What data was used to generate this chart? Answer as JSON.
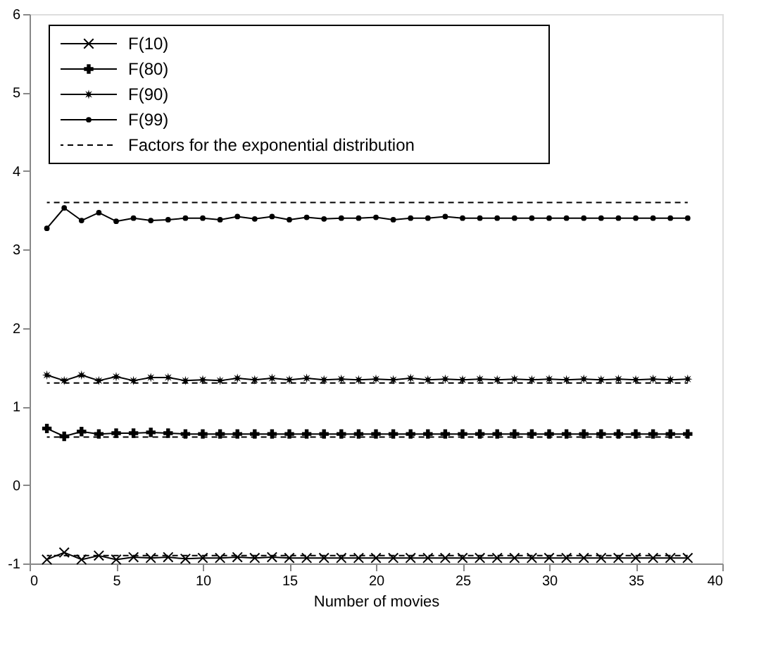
{
  "chart_data": {
    "type": "line",
    "xlabel": "Number of movies",
    "x": [
      1,
      2,
      3,
      4,
      5,
      6,
      7,
      8,
      9,
      10,
      11,
      12,
      13,
      14,
      15,
      16,
      17,
      18,
      19,
      20,
      21,
      22,
      23,
      24,
      25,
      26,
      27,
      28,
      29,
      30,
      31,
      32,
      33,
      34,
      35,
      36,
      37,
      38
    ],
    "series": [
      {
        "name": "F(10)",
        "color": "#000000",
        "marker": "x",
        "line_style": "solid",
        "values": [
          -0.95,
          -0.86,
          -0.95,
          -0.9,
          -0.95,
          -0.92,
          -0.93,
          -0.92,
          -0.94,
          -0.93,
          -0.93,
          -0.92,
          -0.93,
          -0.92,
          -0.93,
          -0.93,
          -0.93,
          -0.93,
          -0.93,
          -0.93,
          -0.93,
          -0.93,
          -0.93,
          -0.93,
          -0.93,
          -0.93,
          -0.93,
          -0.93,
          -0.93,
          -0.93,
          -0.93,
          -0.93,
          -0.93,
          -0.93,
          -0.93,
          -0.93,
          -0.93,
          -0.93
        ]
      },
      {
        "name": "F(80)",
        "color": "#000000",
        "marker": "cross",
        "line_style": "solid",
        "values": [
          0.72,
          0.62,
          0.68,
          0.65,
          0.66,
          0.66,
          0.67,
          0.66,
          0.65,
          0.65,
          0.65,
          0.65,
          0.65,
          0.65,
          0.65,
          0.65,
          0.65,
          0.65,
          0.65,
          0.65,
          0.65,
          0.65,
          0.65,
          0.65,
          0.65,
          0.65,
          0.65,
          0.65,
          0.65,
          0.65,
          0.65,
          0.65,
          0.65,
          0.65,
          0.65,
          0.65,
          0.65,
          0.65
        ]
      },
      {
        "name": "F(90)",
        "color": "#000000",
        "marker": "star",
        "line_style": "solid",
        "values": [
          1.4,
          1.33,
          1.4,
          1.33,
          1.38,
          1.33,
          1.37,
          1.37,
          1.33,
          1.34,
          1.33,
          1.36,
          1.34,
          1.36,
          1.34,
          1.36,
          1.34,
          1.35,
          1.34,
          1.35,
          1.34,
          1.36,
          1.34,
          1.35,
          1.34,
          1.35,
          1.34,
          1.35,
          1.34,
          1.35,
          1.34,
          1.35,
          1.34,
          1.35,
          1.34,
          1.35,
          1.34,
          1.35
        ]
      },
      {
        "name": "F(99)",
        "color": "#000000",
        "marker": "circle",
        "line_style": "solid",
        "values": [
          3.27,
          3.53,
          3.37,
          3.47,
          3.36,
          3.4,
          3.37,
          3.38,
          3.4,
          3.4,
          3.38,
          3.42,
          3.39,
          3.42,
          3.38,
          3.41,
          3.39,
          3.4,
          3.4,
          3.41,
          3.38,
          3.4,
          3.4,
          3.42,
          3.4,
          3.4,
          3.4,
          3.4,
          3.4,
          3.4,
          3.4,
          3.4,
          3.4,
          3.4,
          3.4,
          3.4,
          3.4,
          3.4
        ]
      },
      {
        "name": "Factors for the exponential distribution",
        "color": "#000000",
        "marker": "none",
        "line_style": "dashed",
        "values": [
          3.6,
          3.6,
          3.6,
          3.6,
          3.6,
          3.6,
          3.6,
          3.6,
          3.6,
          3.6,
          3.6,
          3.6,
          3.6,
          3.6,
          3.6,
          3.6,
          3.6,
          3.6,
          3.6,
          3.6,
          3.6,
          3.6,
          3.6,
          3.6,
          3.6,
          3.6,
          3.6,
          3.6,
          3.6,
          3.6,
          3.6,
          3.6,
          3.6,
          3.6,
          3.6,
          3.6,
          3.6,
          3.6
        ]
      },
      {
        "color": "#000000",
        "marker": "none",
        "line_style": "dashed",
        "values": [
          1.3,
          1.3,
          1.3,
          1.3,
          1.3,
          1.3,
          1.3,
          1.3,
          1.3,
          1.3,
          1.3,
          1.3,
          1.3,
          1.3,
          1.3,
          1.3,
          1.3,
          1.3,
          1.3,
          1.3,
          1.3,
          1.3,
          1.3,
          1.3,
          1.3,
          1.3,
          1.3,
          1.3,
          1.3,
          1.3,
          1.3,
          1.3,
          1.3,
          1.3,
          1.3,
          1.3,
          1.3,
          1.3
        ]
      },
      {
        "color": "#000000",
        "marker": "none",
        "line_style": "dashed",
        "values": [
          0.61,
          0.61,
          0.61,
          0.61,
          0.61,
          0.61,
          0.61,
          0.61,
          0.61,
          0.61,
          0.61,
          0.61,
          0.61,
          0.61,
          0.61,
          0.61,
          0.61,
          0.61,
          0.61,
          0.61,
          0.61,
          0.61,
          0.61,
          0.61,
          0.61,
          0.61,
          0.61,
          0.61,
          0.61,
          0.61,
          0.61,
          0.61,
          0.61,
          0.61,
          0.61,
          0.61,
          0.61,
          0.61
        ]
      },
      {
        "color": "#000000",
        "marker": "none",
        "line_style": "dashed",
        "values": [
          -0.9,
          -0.9,
          -0.9,
          -0.9,
          -0.9,
          -0.9,
          -0.9,
          -0.9,
          -0.9,
          -0.9,
          -0.9,
          -0.9,
          -0.9,
          -0.9,
          -0.9,
          -0.9,
          -0.9,
          -0.9,
          -0.9,
          -0.9,
          -0.9,
          -0.9,
          -0.9,
          -0.9,
          -0.9,
          -0.9,
          -0.9,
          -0.9,
          -0.9,
          -0.9,
          -0.9,
          -0.9,
          -0.9,
          -0.9,
          -0.9,
          -0.9,
          -0.9,
          -0.9
        ]
      }
    ],
    "xlim": [
      0,
      40
    ],
    "xticks": [
      0,
      5,
      10,
      15,
      20,
      25,
      30,
      35,
      40
    ],
    "ylim": [
      -1,
      6
    ],
    "yticks": [
      -1,
      0,
      1,
      2,
      3,
      4,
      5,
      6
    ],
    "grid": false,
    "legend": "top left"
  }
}
